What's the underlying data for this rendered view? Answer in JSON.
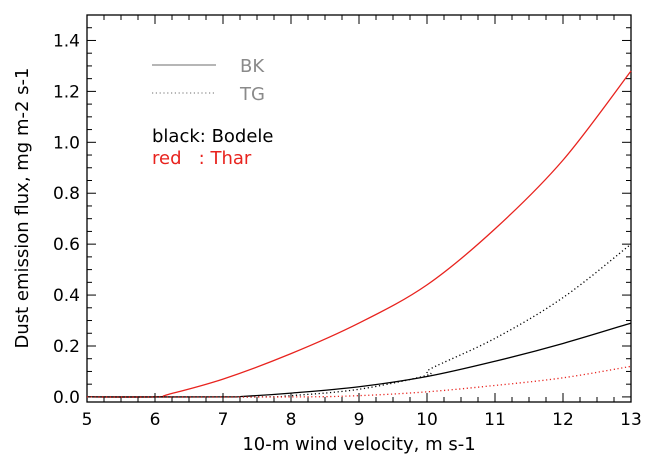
{
  "chart_data": {
    "type": "line",
    "title": "",
    "xlabel": "10-m wind velocity, m s-1",
    "ylabel": "Dust emission flux, mg m-2 s-1",
    "xlim": [
      5,
      13
    ],
    "ylim": [
      -0.02,
      1.5
    ],
    "xticks": [
      "5",
      "6",
      "7",
      "8",
      "9",
      "10",
      "11",
      "12",
      "13"
    ],
    "yticks": [
      "0.0",
      "0.2",
      "0.4",
      "0.6",
      "0.8",
      "1.0",
      "1.2",
      "1.4"
    ],
    "grid": false,
    "legend": [
      {
        "label": "BK",
        "style": "solid",
        "color": "#8a8a8a"
      },
      {
        "label": "TG",
        "style": "dotted",
        "color": "#8a8a8a"
      }
    ],
    "annotations": [
      {
        "text": "black: Bodele",
        "color": "#000000"
      },
      {
        "text": "red   : Thar",
        "color": "#e8231e"
      }
    ],
    "series": [
      {
        "scheme": "BK",
        "region": "Thar",
        "style": "solid",
        "color": "#e8231e",
        "x": [
          5,
          6,
          6.2,
          7,
          8,
          9,
          10,
          11,
          12,
          13
        ],
        "y": [
          0,
          0,
          0.01,
          0.07,
          0.17,
          0.29,
          0.44,
          0.66,
          0.93,
          1.28
        ]
      },
      {
        "scheme": "BK",
        "region": "Bodele",
        "style": "solid",
        "color": "#000000",
        "x": [
          5,
          7,
          7.3,
          8,
          9,
          10,
          11,
          12,
          13
        ],
        "y": [
          0,
          0,
          0.002,
          0.015,
          0.04,
          0.08,
          0.14,
          0.21,
          0.29
        ]
      },
      {
        "scheme": "TG",
        "region": "Bodele",
        "style": "dotted",
        "color": "#000000",
        "x": [
          5,
          7.5,
          8,
          9,
          10,
          10.05,
          11,
          12,
          13
        ],
        "y": [
          0,
          0,
          0.005,
          0.03,
          0.085,
          0.11,
          0.23,
          0.39,
          0.6
        ]
      },
      {
        "scheme": "TG",
        "region": "Thar",
        "style": "dotted",
        "color": "#e8231e",
        "x": [
          5,
          8,
          9,
          10,
          11,
          12,
          13
        ],
        "y": [
          0,
          0,
          0.005,
          0.02,
          0.045,
          0.075,
          0.12
        ]
      }
    ]
  }
}
